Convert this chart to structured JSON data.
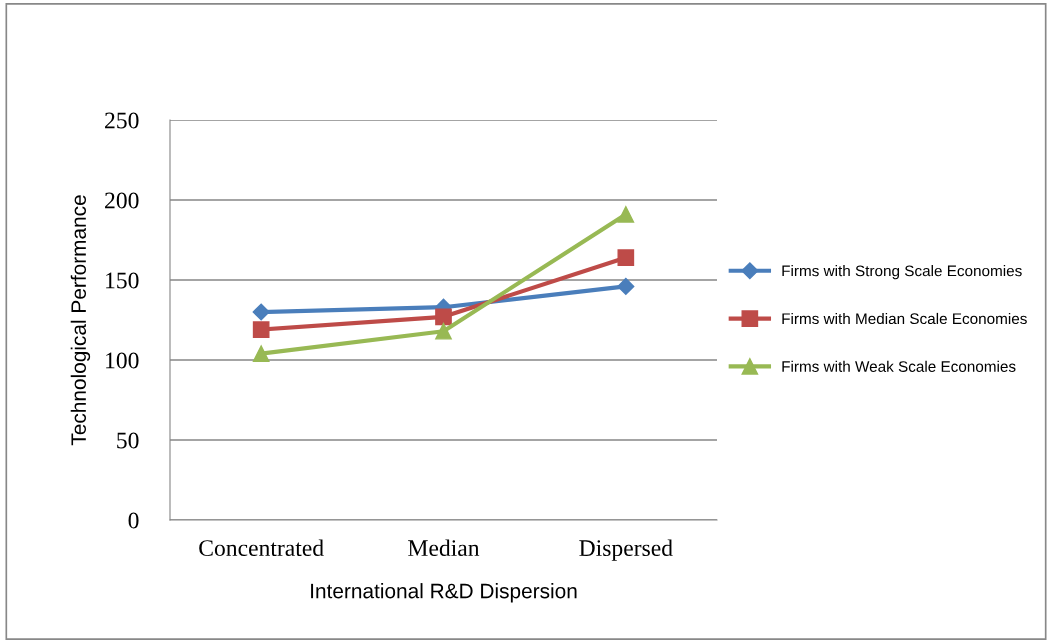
{
  "chart_data": {
    "type": "line",
    "xlabel": "International R&D Dispersion",
    "ylabel": "Technological Performance",
    "categories": [
      "Concentrated",
      "Median",
      "Dispersed"
    ],
    "series": [
      {
        "name": "Firms with Strong Scale Economies",
        "color": "#4a7ebb",
        "marker": "diamond",
        "values": [
          130,
          133,
          146
        ]
      },
      {
        "name": "Firms with Median Scale Economies",
        "color": "#be4b48",
        "marker": "square",
        "values": [
          119,
          127,
          164
        ]
      },
      {
        "name": "Firms with Weak Scale Economies",
        "color": "#98b954",
        "marker": "triangle",
        "values": [
          104,
          118,
          191
        ]
      }
    ],
    "ylim": [
      0,
      250
    ],
    "yticks": [
      0,
      50,
      100,
      150,
      200,
      250
    ],
    "grid": "y",
    "legend": "right",
    "line_style": "solid"
  }
}
